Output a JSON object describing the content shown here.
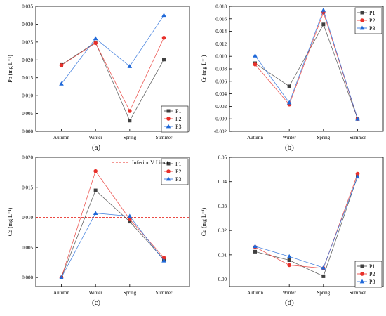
{
  "figure": {
    "panel_labels": [
      "(a)",
      "(b)",
      "(c)",
      "(d)"
    ]
  },
  "chart_data": [
    {
      "type": "line",
      "panel": "(a)",
      "categories": [
        "Autumn",
        "Winter",
        "Spring",
        "Summer"
      ],
      "ylabel": "Pb (mg L⁻¹)",
      "ylim": [
        0,
        0.035
      ],
      "yticks": [
        "0.000",
        "0.005",
        "0.010",
        "0.015",
        "0.020",
        "0.025",
        "0.030",
        "0.035"
      ],
      "legend_position": "bottom-right",
      "series": [
        {
          "name": "P1",
          "color": "#404040",
          "marker": "square",
          "values": [
            0.0186,
            0.0249,
            0.003,
            0.0201
          ]
        },
        {
          "name": "P2",
          "color": "#e8302a",
          "marker": "circle",
          "values": [
            0.0185,
            0.0247,
            0.0057,
            0.0262
          ]
        },
        {
          "name": "P3",
          "color": "#1f68d8",
          "marker": "triangle",
          "values": [
            0.0133,
            0.026,
            0.0182,
            0.0325
          ]
        }
      ]
    },
    {
      "type": "line",
      "panel": "(b)",
      "categories": [
        "Autumn",
        "Winter",
        "Spring",
        "Summer"
      ],
      "ylabel": "Cr (mg L⁻¹)",
      "ylim": [
        -0.002,
        0.018
      ],
      "yticks": [
        "-0.002",
        "0.000",
        "0.002",
        "0.004",
        "0.006",
        "0.008",
        "0.010",
        "0.012",
        "0.014",
        "0.016",
        "0.018"
      ],
      "legend_position": "top-right",
      "series": [
        {
          "name": "P1",
          "color": "#404040",
          "marker": "square",
          "values": [
            0.0089,
            0.0052,
            0.0151,
            0.0
          ]
        },
        {
          "name": "P2",
          "color": "#e8302a",
          "marker": "circle",
          "values": [
            0.0087,
            0.0023,
            0.017,
            0.0
          ]
        },
        {
          "name": "P3",
          "color": "#1f68d8",
          "marker": "triangle",
          "values": [
            0.0101,
            0.0026,
            0.0174,
            0.0
          ]
        }
      ]
    },
    {
      "type": "line",
      "panel": "(c)",
      "categories": [
        "Autumn",
        "Winter",
        "Spring",
        "Summer"
      ],
      "ylabel": "Cd (mg L⁻¹)",
      "ylim": [
        -0.0015,
        0.02
      ],
      "yticks": [
        "0.000",
        "0.005",
        "0.010",
        "0.015",
        "0.020"
      ],
      "legend_position": "top-right",
      "reference_line": {
        "name": "Inferior V Limit",
        "value": 0.01,
        "color": "#e8302a"
      },
      "series": [
        {
          "name": "P1",
          "color": "#404040",
          "marker": "square",
          "values": [
            0.0,
            0.0145,
            0.0093,
            0.003
          ]
        },
        {
          "name": "P2",
          "color": "#e8302a",
          "marker": "circle",
          "values": [
            0.0,
            0.0177,
            0.0097,
            0.0033
          ]
        },
        {
          "name": "P3",
          "color": "#1f68d8",
          "marker": "triangle",
          "values": [
            0.0,
            0.0107,
            0.0102,
            0.0028
          ]
        }
      ]
    },
    {
      "type": "line",
      "panel": "(d)",
      "categories": [
        "Autumn",
        "Winter",
        "Spring",
        "Summer"
      ],
      "ylabel": "Cu (mg L⁻¹)",
      "ylim": [
        -0.003,
        0.05
      ],
      "yticks": [
        "0.00",
        "0.01",
        "0.02",
        "0.03",
        "0.04",
        "0.05"
      ],
      "legend_position": "bottom-right",
      "series": [
        {
          "name": "P1",
          "color": "#404040",
          "marker": "square",
          "values": [
            0.0113,
            0.0078,
            0.0012,
            0.0423
          ]
        },
        {
          "name": "P2",
          "color": "#e8302a",
          "marker": "circle",
          "values": [
            0.0132,
            0.0058,
            0.0045,
            0.0432
          ]
        },
        {
          "name": "P3",
          "color": "#1f68d8",
          "marker": "triangle",
          "values": [
            0.0135,
            0.0093,
            0.0047,
            0.042
          ]
        }
      ]
    }
  ]
}
